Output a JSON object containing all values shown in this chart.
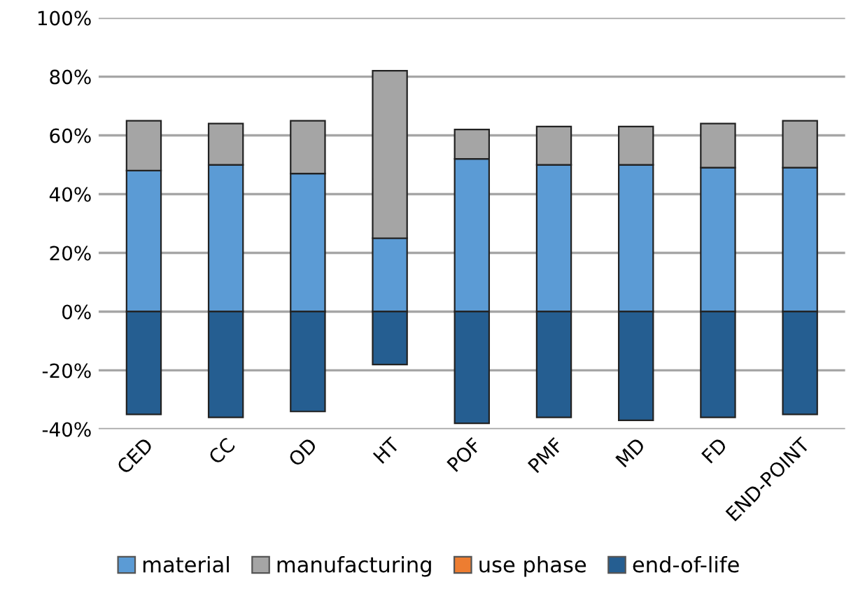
{
  "chart_data": {
    "type": "bar",
    "stacked": true,
    "categories": [
      "CED",
      "CC",
      "OD",
      "HT",
      "POF",
      "PMF",
      "MD",
      "FD",
      "END-POINT"
    ],
    "series": [
      {
        "name": "material",
        "color": "#5b9bd5",
        "values": [
          48,
          50,
          47,
          25,
          52,
          50,
          50,
          49,
          49
        ]
      },
      {
        "name": "manufacturing",
        "color": "#a5a5a5",
        "values": [
          17,
          14,
          18,
          57,
          10,
          13,
          13,
          15,
          16
        ]
      },
      {
        "name": "use phase",
        "color": "#ed7d31",
        "values": [
          0,
          0,
          0,
          0,
          0,
          0,
          0,
          0,
          0
        ]
      },
      {
        "name": "end-of-life",
        "color": "#255e91",
        "values": [
          -35,
          -36,
          -34,
          -18,
          -38,
          -36,
          -37,
          -36,
          -35
        ]
      }
    ],
    "ylim": [
      -40,
      100
    ],
    "yticks": [
      {
        "value": -40,
        "label": "-40%"
      },
      {
        "value": -20,
        "label": "-20%"
      },
      {
        "value": 0,
        "label": "0%"
      },
      {
        "value": 20,
        "label": "20%"
      },
      {
        "value": 40,
        "label": "40%"
      },
      {
        "value": 60,
        "label": "60%"
      },
      {
        "value": 80,
        "label": "80%"
      },
      {
        "value": 100,
        "label": "100%"
      }
    ],
    "grid": "y",
    "legend": "bottom"
  }
}
